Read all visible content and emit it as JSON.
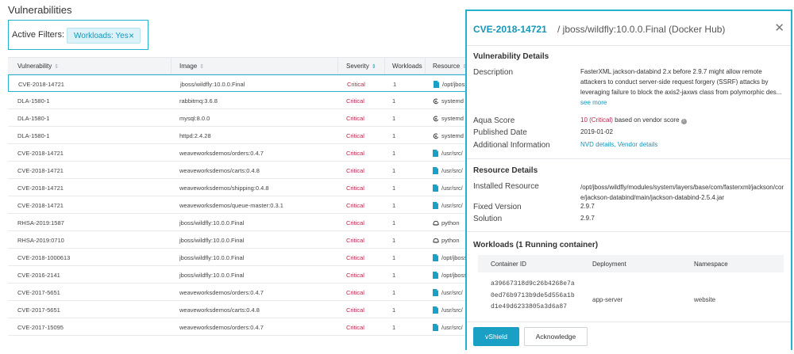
{
  "page": {
    "title": "Vulnerabilities"
  },
  "filters": {
    "label": "Active Filters:",
    "chip_label": "Workloads: Yes"
  },
  "table": {
    "headers": {
      "vulnerability": "Vulnerability",
      "image": "Image",
      "severity": "Severity",
      "workloads": "Workloads",
      "resource": "Resource"
    },
    "rows": [
      {
        "vuln": "CVE-2018-14721",
        "image": "jboss/wildfly:10.0.0.Final",
        "severity": "Critical",
        "workloads": "1",
        "resource": "/opt/jboss",
        "res_icon": "file-icon",
        "selected": true
      },
      {
        "vuln": "DLA-1580-1",
        "image": "rabbitmq:3.6.8",
        "severity": "Critical",
        "workloads": "1",
        "resource": "systemd",
        "res_icon": "debian-icon"
      },
      {
        "vuln": "DLA-1580-1",
        "image": "mysql:8.0.0",
        "severity": "Critical",
        "workloads": "1",
        "resource": "systemd",
        "res_icon": "debian-icon"
      },
      {
        "vuln": "DLA-1580-1",
        "image": "httpd:2.4.28",
        "severity": "Critical",
        "workloads": "1",
        "resource": "systemd",
        "res_icon": "debian-icon"
      },
      {
        "vuln": "CVE-2018-14721",
        "image": "weaveworksdemos/orders:0.4.7",
        "severity": "Critical",
        "workloads": "1",
        "resource": "/usr/src/",
        "res_icon": "file-icon"
      },
      {
        "vuln": "CVE-2018-14721",
        "image": "weaveworksdemos/carts:0.4.8",
        "severity": "Critical",
        "workloads": "1",
        "resource": "/usr/src/",
        "res_icon": "file-icon"
      },
      {
        "vuln": "CVE-2018-14721",
        "image": "weaveworksdemos/shipping:0.4.8",
        "severity": "Critical",
        "workloads": "1",
        "resource": "/usr/src/",
        "res_icon": "file-icon"
      },
      {
        "vuln": "CVE-2018-14721",
        "image": "weaveworksdemos/queue-master:0.3.1",
        "severity": "Critical",
        "workloads": "1",
        "resource": "/usr/src/",
        "res_icon": "file-icon"
      },
      {
        "vuln": "RHSA-2019:1587",
        "image": "jboss/wildfly:10.0.0.Final",
        "severity": "Critical",
        "workloads": "1",
        "resource": "python",
        "res_icon": "redhat-icon"
      },
      {
        "vuln": "RHSA-2019:0710",
        "image": "jboss/wildfly:10.0.0.Final",
        "severity": "Critical",
        "workloads": "1",
        "resource": "python",
        "res_icon": "redhat-icon"
      },
      {
        "vuln": "CVE-2018-1000613",
        "image": "jboss/wildfly:10.0.0.Final",
        "severity": "Critical",
        "workloads": "1",
        "resource": "/opt/jboss",
        "res_icon": "file-icon"
      },
      {
        "vuln": "CVE-2016-2141",
        "image": "jboss/wildfly:10.0.0.Final",
        "severity": "Critical",
        "workloads": "1",
        "resource": "/opt/jboss",
        "res_icon": "file-icon"
      },
      {
        "vuln": "CVE-2017-5651",
        "image": "weaveworksdemos/orders:0.4.7",
        "severity": "Critical",
        "workloads": "1",
        "resource": "/usr/src/",
        "res_icon": "file-icon"
      },
      {
        "vuln": "CVE-2017-5651",
        "image": "weaveworksdemos/carts:0.4.8",
        "severity": "Critical",
        "workloads": "1",
        "resource": "/usr/src/",
        "res_icon": "file-icon"
      },
      {
        "vuln": "CVE-2017-15095",
        "image": "weaveworksdemos/orders:0.4.7",
        "severity": "Critical",
        "workloads": "1",
        "resource": "/usr/src/",
        "res_icon": "file-icon"
      }
    ]
  },
  "panel": {
    "cve": "CVE-2018-14721",
    "subtitle": "/ jboss/wildfly:10.0.0.Final (Docker Hub)",
    "vuln_details": {
      "title": "Vulnerability Details",
      "description_label": "Description",
      "description": "FasterXML jackson-databind 2.x before 2.9.7 might allow remote attackers to conduct server-side request forgery (SSRF) attacks by leveraging failure to block the axis2-jaxws class from polymorphic des...",
      "see_more": "see more",
      "aqua_score_label": "Aqua Score",
      "aqua_score_value": "10",
      "aqua_score_severity": "(Critical)",
      "aqua_score_note": "based on vendor score",
      "published_label": "Published Date",
      "published": "2019-01-02",
      "additional_label": "Additional Information",
      "nvd_link": "NVD details",
      "vendor_link": "Vendor details"
    },
    "resource_details": {
      "title": "Resource Details",
      "installed_label": "Installed Resource",
      "installed": "/opt/jboss/wildfly/modules/system/layers/base/com/fasterxml/jackson/core/jackson-databind/main/jackson-databind-2.5.4.jar",
      "fixed_label": "Fixed Version",
      "fixed": "2.9.7",
      "solution_label": "Solution",
      "solution": "2.9.7"
    },
    "workloads": {
      "title": "Workloads (1 Running container)",
      "headers": {
        "container_id": "Container ID",
        "deployment": "Deployment",
        "namespace": "Namespace"
      },
      "container_id_lines": [
        "a39667318d9c26b4268e7a",
        "0ed76b9713b9de5d556a1b",
        "d1e49d6233805a3d6a87"
      ],
      "deployment": "app-server",
      "namespace": "website"
    },
    "buttons": {
      "vshield": "vShield",
      "acknowledge": "Acknowledge"
    }
  },
  "colors": {
    "accent": "#1aa0c4",
    "critical": "#b7274b"
  }
}
